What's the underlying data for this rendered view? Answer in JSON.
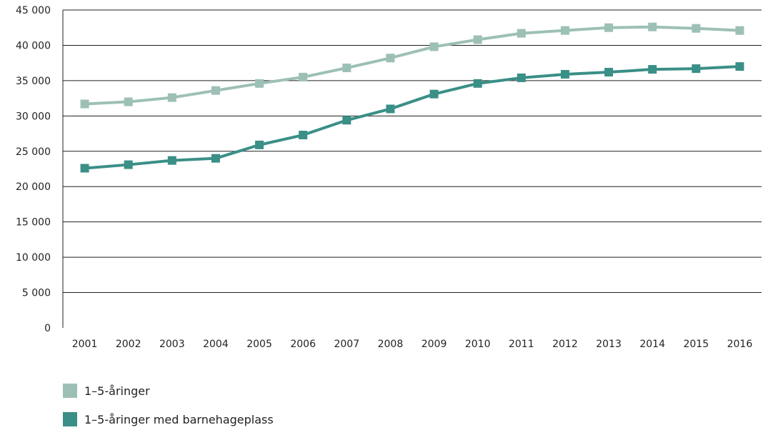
{
  "chart_data": {
    "type": "line",
    "title": "",
    "xlabel": "",
    "ylabel": "",
    "categories": [
      "2001",
      "2002",
      "2003",
      "2004",
      "2005",
      "2006",
      "2007",
      "2008",
      "2009",
      "2010",
      "2011",
      "2012",
      "2013",
      "2014",
      "2015",
      "2016"
    ],
    "ylim": [
      0,
      45000
    ],
    "yticks": [
      0,
      5000,
      10000,
      15000,
      20000,
      25000,
      30000,
      35000,
      40000,
      45000
    ],
    "ytick_labels": [
      "0",
      "5 000",
      "10 000",
      "15 000",
      "20 000",
      "25 000",
      "30 000",
      "35 000",
      "40 000",
      "45 000"
    ],
    "grid": true,
    "legend_position": "bottom-left",
    "series": [
      {
        "name": "1–5-åringer",
        "color": "#9dc0b6",
        "values": [
          31700,
          32000,
          32600,
          33600,
          34600,
          35500,
          36800,
          38200,
          39800,
          40800,
          41700,
          42100,
          42500,
          42600,
          42400,
          42100
        ]
      },
      {
        "name": "1–5-åringer med barnehageplass",
        "color": "#3a8f87",
        "values": [
          22600,
          23100,
          23700,
          24000,
          25900,
          27300,
          29400,
          31000,
          33100,
          34600,
          35400,
          35900,
          36200,
          36600,
          36700,
          37000
        ]
      }
    ]
  }
}
